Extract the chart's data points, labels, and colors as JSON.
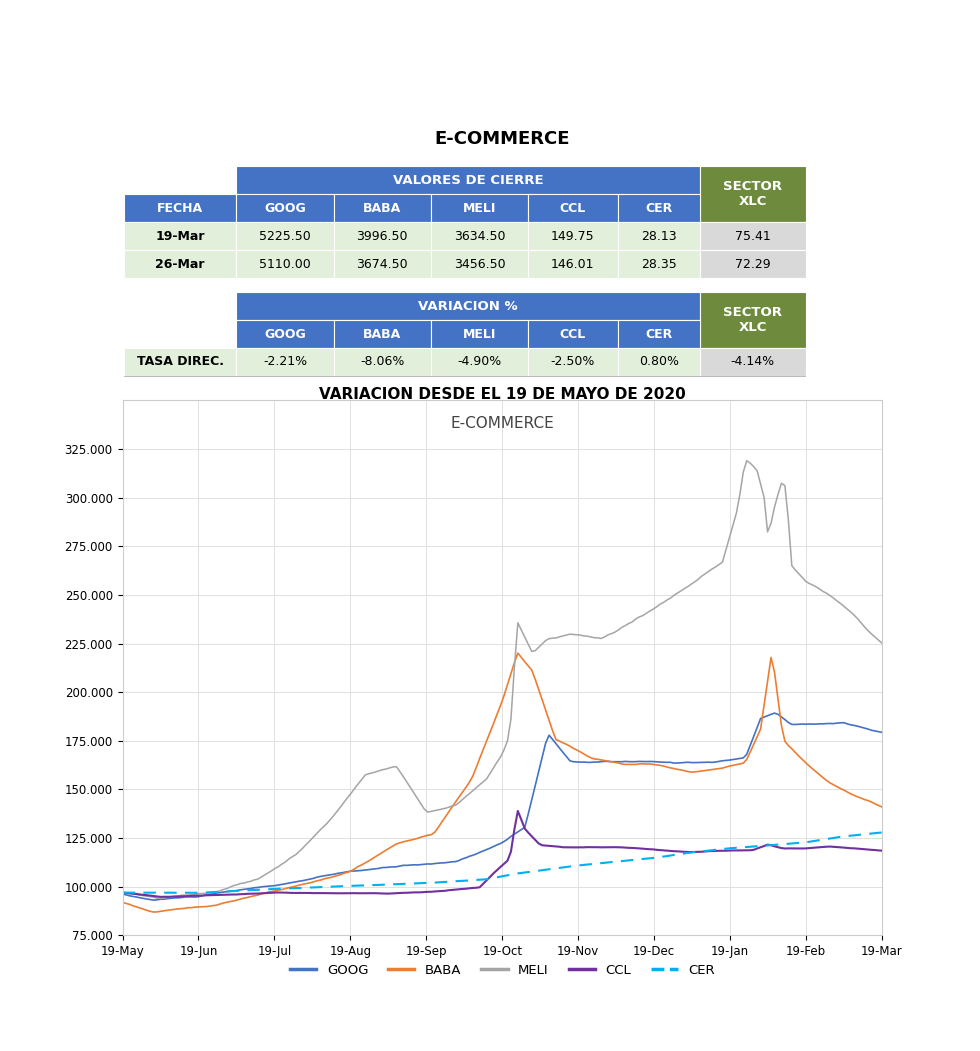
{
  "title_top": "E-COMMERCE",
  "title_bottom": "VARIACION DESDE EL 19 DE MAYO DE 2020",
  "chart_title": "E-COMMERCE",
  "header_bg": "#4472C4",
  "header_text": "#FFFFFF",
  "green_bg": "#6E8B3D",
  "light_green_bg": "#E2EFDA",
  "light_gray_bg": "#D9D9D9",
  "white_bg": "#FFFFFF",
  "col_headers": [
    "FECHA",
    "GOOG",
    "BABA",
    "MELI",
    "CCL",
    "CER",
    "SECTOR\nXLC"
  ],
  "row1": [
    "19-Mar",
    "5225.50",
    "3996.50",
    "3634.50",
    "149.75",
    "28.13",
    "75.41"
  ],
  "row2": [
    "26-Mar",
    "5110.00",
    "3674.50",
    "3456.50",
    "146.01",
    "28.35",
    "72.29"
  ],
  "var_row": [
    "TASA DIREC.",
    "-2.21%",
    "-8.06%",
    "-4.90%",
    "-2.50%",
    "0.80%",
    "-4.14%"
  ],
  "ylim": [
    75000,
    350000
  ],
  "yticks": [
    75000,
    100000,
    125000,
    150000,
    175000,
    200000,
    225000,
    250000,
    275000,
    300000,
    325000
  ],
  "ytick_labels": [
    "75.000",
    "100.000",
    "125.000",
    "150.000",
    "175.000",
    "200.000",
    "225.000",
    "250.000",
    "275.000",
    "300.000",
    "325.000"
  ],
  "xtick_labels": [
    "19-May",
    "19-Jun",
    "19-Jul",
    "19-Aug",
    "19-Sep",
    "19-Oct",
    "19-Nov",
    "19-Dec",
    "19-Jan",
    "19-Feb",
    "19-Mar"
  ],
  "line_colors": {
    "GOOG": "#4472C4",
    "BABA": "#ED7D31",
    "MELI": "#A5A5A5",
    "CCL": "#7030A0",
    "CER": "#00B0F0"
  }
}
